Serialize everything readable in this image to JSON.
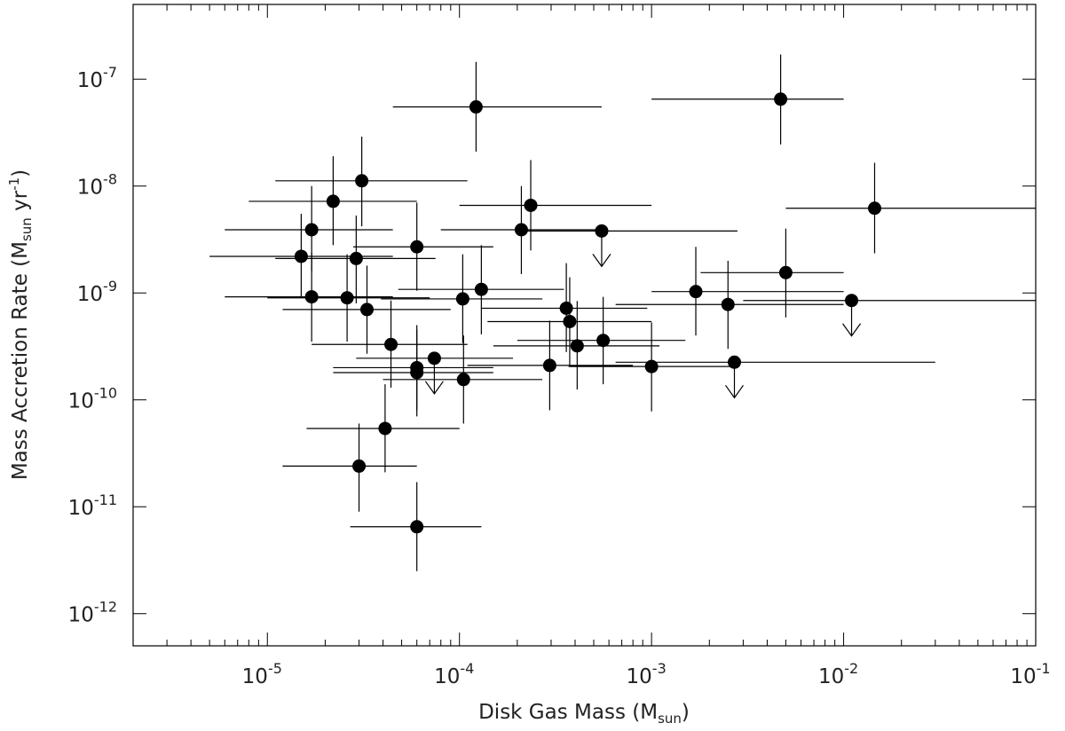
{
  "chart_data": {
    "type": "scatter",
    "xlabel": "Disk Gas Mass (M",
    "xlabel_sub": "sun",
    "xlabel_end": ")",
    "ylabel": "Mass Accretion Rate (M",
    "ylabel_sub": "sun",
    "ylabel_mid": " yr",
    "ylabel_sup": "-1",
    "ylabel_end": ")",
    "x_scale": "log",
    "y_scale": "log",
    "xlim": [
      2e-06,
      0.1
    ],
    "ylim": [
      5e-13,
      5e-07
    ],
    "grid": false,
    "x_ticks": [
      {
        "base": "10",
        "exp": "-5",
        "value": 1e-05
      },
      {
        "base": "10",
        "exp": "-4",
        "value": 0.0001
      },
      {
        "base": "10",
        "exp": "-3",
        "value": 0.001
      },
      {
        "base": "10",
        "exp": "-2",
        "value": 0.01
      },
      {
        "base": "10",
        "exp": "-1",
        "value": 0.1
      }
    ],
    "y_ticks": [
      {
        "base": "10",
        "exp": "-7",
        "value": 1e-07
      },
      {
        "base": "10",
        "exp": "-8",
        "value": 1e-08
      },
      {
        "base": "10",
        "exp": "-9",
        "value": 1e-09
      },
      {
        "base": "10",
        "exp": "-10",
        "value": 1e-10
      },
      {
        "base": "10",
        "exp": "-11",
        "value": 1e-11
      },
      {
        "base": "10",
        "exp": "-12",
        "value": 1e-12
      }
    ],
    "points": [
      {
        "x": 1.5e-05,
        "y": 2.2e-09,
        "xerr": [
          5e-06,
          4.5e-05
        ],
        "yerr": [
          9e-10,
          5.5e-09
        ]
      },
      {
        "x": 1.7e-05,
        "y": 3.9e-09,
        "xerr": [
          6e-06,
          4.5e-05
        ],
        "yerr": [
          1.6e-09,
          1e-08
        ]
      },
      {
        "x": 1.7e-05,
        "y": 9.2e-10,
        "xerr": [
          6e-06,
          4.5e-05
        ],
        "yerr": [
          3.5e-10,
          2.4e-09
        ]
      },
      {
        "x": 2.2e-05,
        "y": 7.2e-09,
        "xerr": [
          8e-06,
          6e-05
        ],
        "yerr": [
          2.8e-09,
          1.9e-08
        ]
      },
      {
        "x": 2.6e-05,
        "y": 9e-10,
        "xerr": [
          1e-05,
          7e-05
        ],
        "yerr": [
          3.5e-10,
          2.3e-09
        ]
      },
      {
        "x": 2.9e-05,
        "y": 2.1e-09,
        "xerr": [
          1.1e-05,
          7.5e-05
        ],
        "yerr": [
          8e-10,
          5.3e-09
        ]
      },
      {
        "x": 3.1e-05,
        "y": 1.12e-08,
        "xerr": [
          1.1e-05,
          0.00011
        ],
        "yerr": [
          4.2e-09,
          2.9e-08
        ]
      },
      {
        "x": 3.3e-05,
        "y": 7e-10,
        "xerr": [
          1.2e-05,
          9e-05
        ],
        "yerr": [
          2.7e-10,
          1.8e-09
        ]
      },
      {
        "x": 3e-05,
        "y": 2.4e-11,
        "xerr": [
          1.2e-05,
          6e-05
        ],
        "yerr": [
          9e-12,
          6e-11
        ]
      },
      {
        "x": 4.1e-05,
        "y": 5.4e-11,
        "xerr": [
          1.6e-05,
          0.0001
        ],
        "yerr": [
          2.1e-11,
          1.4e-10
        ]
      },
      {
        "x": 4.4e-05,
        "y": 3.3e-10,
        "xerr": [
          1.7e-05,
          0.00011
        ],
        "yerr": [
          1.3e-10,
          8.5e-10
        ]
      },
      {
        "x": 6e-05,
        "y": 2.7e-09,
        "xerr": [
          2.8e-05,
          0.00015
        ],
        "yerr": [
          1.05e-09,
          7e-09
        ]
      },
      {
        "x": 6e-05,
        "y": 2e-10,
        "xerr": [
          2.2e-05,
          0.00015
        ],
        "yerr": [
          8e-11,
          5e-10
        ]
      },
      {
        "x": 6e-05,
        "y": 1.8e-10,
        "xerr": [
          2.2e-05,
          0.00015
        ],
        "yerr": [
          7e-11,
          4.5e-10
        ]
      },
      {
        "x": 6e-05,
        "y": 6.5e-12,
        "xerr": [
          2.7e-05,
          0.00013
        ],
        "yerr": [
          2.5e-12,
          1.7e-11
        ]
      },
      {
        "x": 7.4e-05,
        "y": 2.45e-10,
        "xerr": [
          2.9e-05,
          0.00019
        ],
        "upper": true
      },
      {
        "x": 0.000104,
        "y": 8.8e-10,
        "xerr": [
          3.9e-05,
          0.00027
        ],
        "yerr": [
          3.4e-10,
          2.3e-09
        ]
      },
      {
        "x": 0.000105,
        "y": 1.55e-10,
        "xerr": [
          4e-05,
          0.00027
        ],
        "yerr": [
          6e-11,
          4e-10
        ]
      },
      {
        "x": 0.000122,
        "y": 5.5e-08,
        "xerr": [
          4.5e-05,
          0.00055
        ],
        "yerr": [
          2.1e-08,
          1.45e-07
        ]
      },
      {
        "x": 0.00013,
        "y": 1.08e-09,
        "xerr": [
          4.8e-05,
          0.00035
        ],
        "yerr": [
          4.1e-10,
          2.8e-09
        ]
      },
      {
        "x": 0.00021,
        "y": 3.9e-09,
        "xerr": [
          8e-05,
          0.00055
        ],
        "yerr": [
          1.5e-09,
          1e-08
        ]
      },
      {
        "x": 0.000235,
        "y": 6.6e-09,
        "xerr": [
          0.0001,
          0.001
        ],
        "yerr": [
          2.5e-09,
          1.75e-08
        ]
      },
      {
        "x": 0.000295,
        "y": 2.1e-10,
        "xerr": [
          0.00011,
          0.0008
        ],
        "yerr": [
          8e-11,
          5.5e-10
        ]
      },
      {
        "x": 0.00036,
        "y": 7.2e-10,
        "xerr": [
          0.00013,
          0.00095
        ],
        "yerr": [
          2.8e-10,
          1.9e-09
        ]
      },
      {
        "x": 0.000375,
        "y": 5.4e-10,
        "xerr": [
          0.00014,
          0.001
        ],
        "yerr": [
          2.1e-10,
          1.4e-09
        ]
      },
      {
        "x": 0.00041,
        "y": 3.2e-10,
        "xerr": [
          0.00015,
          0.0011
        ],
        "yerr": [
          1.25e-10,
          8.4e-10
        ]
      },
      {
        "x": 0.00055,
        "y": 3.8e-09,
        "xerr": [
          0.0002,
          0.0028
        ],
        "upper": true
      },
      {
        "x": 0.00056,
        "y": 3.6e-10,
        "xerr": [
          0.0002,
          0.0015
        ],
        "yerr": [
          1.4e-10,
          9.2e-10
        ]
      },
      {
        "x": 0.001,
        "y": 2.05e-10,
        "xerr": [
          0.00037,
          0.0026
        ],
        "yerr": [
          7.8e-11,
          5.3e-10
        ]
      },
      {
        "x": 0.0017,
        "y": 1.03e-09,
        "xerr": [
          0.001,
          0.01
        ],
        "yerr": [
          4e-10,
          2.7e-09
        ]
      },
      {
        "x": 0.0025,
        "y": 7.8e-10,
        "xerr": [
          0.00065,
          0.01
        ],
        "yerr": [
          3e-10,
          2e-09
        ]
      },
      {
        "x": 0.0027,
        "y": 2.25e-10,
        "xerr": [
          0.00065,
          0.03
        ],
        "upper": true
      },
      {
        "x": 0.0047,
        "y": 6.5e-08,
        "xerr": [
          0.001,
          0.01
        ],
        "yerr": [
          2.45e-08,
          1.7e-07
        ]
      },
      {
        "x": 0.005,
        "y": 1.55e-09,
        "xerr": [
          0.0018,
          0.01
        ],
        "yerr": [
          5.9e-10,
          4e-09
        ]
      },
      {
        "x": 0.011,
        "y": 8.5e-10,
        "xerr": [
          0.003,
          0.1
        ],
        "upper": true
      },
      {
        "x": 0.0145,
        "y": 6.2e-09,
        "xerr": [
          0.005,
          0.1
        ],
        "yerr": [
          2.35e-09,
          1.65e-08
        ]
      }
    ]
  }
}
